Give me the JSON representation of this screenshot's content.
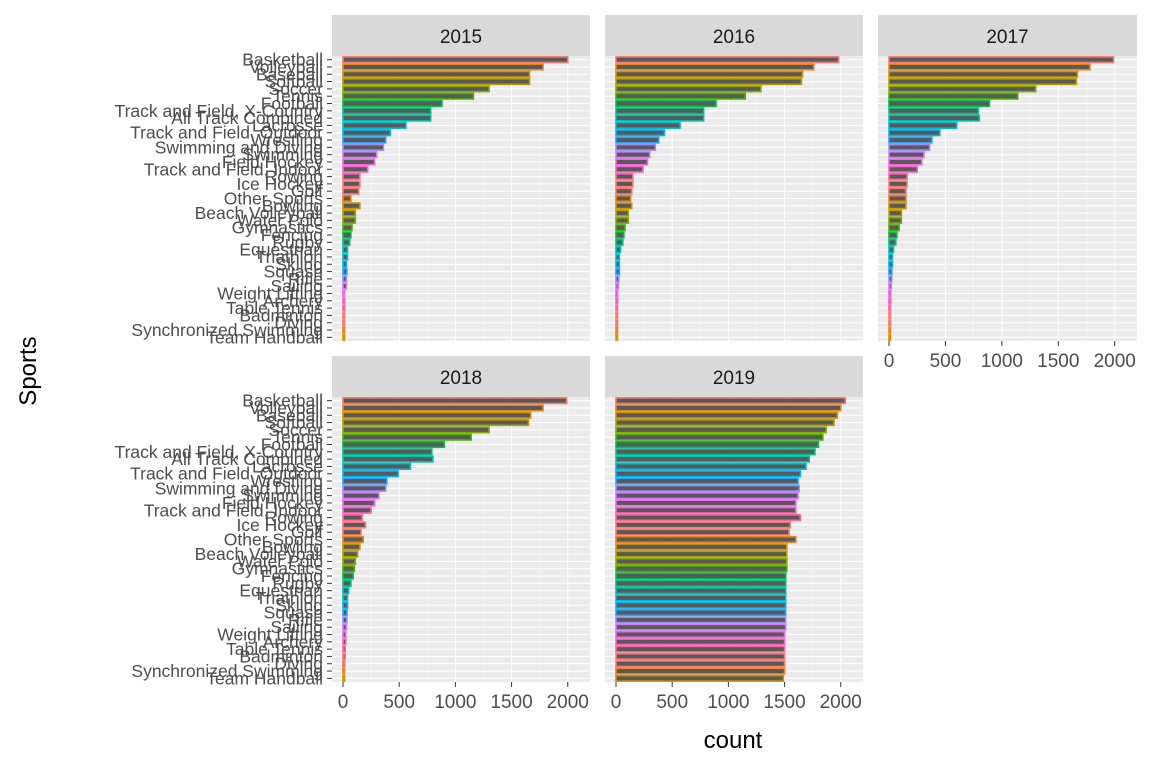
{
  "chart_data": {
    "type": "bar",
    "orientation": "horizontal",
    "facet_by": "year",
    "xlabel": "count",
    "ylabel": "Sports",
    "xlim": [
      0,
      2100
    ],
    "xticks": [
      0,
      500,
      1000,
      1500,
      2000
    ],
    "grid": true,
    "legend": "none",
    "categories": [
      "Basketball",
      "Volleyball",
      "Baseball",
      "Softball",
      "Soccer",
      "Tennis",
      "Football",
      "Track and Field, X-Country",
      "All Track Combined",
      "Lacrosse",
      "Track and Field, Outdoor",
      "Wrestling",
      "Swimming and Diving",
      "Swimming",
      "Field Hockey",
      "Track and Field, Indoor",
      "Rowing",
      "Ice Hockey",
      "Golf",
      "Other Sports",
      "Bowling",
      "Beach Volleyball",
      "Water Polo",
      "Gymnastics",
      "Fencing",
      "Rugby",
      "Equestrian",
      "Triathlon",
      "Skiing",
      "Squash",
      "Rifle",
      "Sailing",
      "Weight Lifting",
      "Archery",
      "Table Tennis",
      "Badminton",
      "Diving",
      "Synchronized Swimming",
      "Team Handball"
    ],
    "colors": [
      "#F8766D",
      "#E7851E",
      "#D09400",
      "#B2A100",
      "#89AC00",
      "#45B500",
      "#00BC51",
      "#00C087",
      "#00C0B2",
      "#00BCD6",
      "#00B3F2",
      "#29A3FF",
      "#9C8DFF",
      "#D277FF",
      "#F166E8",
      "#FF61C7",
      "#FF689E",
      "#FF7A72"
    ],
    "panels": [
      {
        "year": "2015",
        "values": [
          2000,
          1780,
          1660,
          1660,
          1300,
          1160,
          880,
          780,
          780,
          560,
          420,
          380,
          360,
          300,
          280,
          220,
          150,
          150,
          140,
          70,
          150,
          110,
          110,
          80,
          70,
          60,
          40,
          40,
          30,
          35,
          30,
          30,
          10,
          15,
          15,
          10,
          10,
          10,
          0
        ]
      },
      {
        "year": "2016",
        "values": [
          1980,
          1760,
          1660,
          1650,
          1290,
          1150,
          890,
          780,
          780,
          570,
          430,
          380,
          350,
          300,
          280,
          240,
          150,
          150,
          140,
          130,
          140,
          110,
          110,
          80,
          70,
          60,
          40,
          30,
          30,
          30,
          25,
          20,
          15,
          15,
          12,
          10,
          8,
          8,
          0
        ]
      },
      {
        "year": "2017",
        "values": [
          1990,
          1780,
          1670,
          1660,
          1300,
          1140,
          890,
          790,
          800,
          600,
          450,
          380,
          360,
          310,
          290,
          250,
          160,
          160,
          150,
          150,
          150,
          110,
          110,
          90,
          70,
          60,
          40,
          30,
          30,
          25,
          25,
          20,
          15,
          15,
          10,
          10,
          8,
          8,
          0
        ]
      },
      {
        "year": "2018",
        "values": [
          1990,
          1780,
          1670,
          1650,
          1300,
          1140,
          900,
          790,
          800,
          600,
          490,
          390,
          380,
          320,
          280,
          250,
          170,
          200,
          160,
          180,
          150,
          130,
          110,
          100,
          90,
          70,
          50,
          40,
          40,
          35,
          35,
          30,
          25,
          25,
          20,
          20,
          15,
          10,
          0
        ]
      },
      {
        "year": "2019",
        "values": [
          2040,
          2000,
          1970,
          1940,
          1870,
          1840,
          1800,
          1770,
          1720,
          1690,
          1640,
          1620,
          1630,
          1620,
          1600,
          1600,
          1640,
          1550,
          1540,
          1600,
          1520,
          1520,
          1520,
          1520,
          1510,
          1510,
          1510,
          1510,
          1510,
          1510,
          1510,
          1510,
          1500,
          1500,
          1500,
          1500,
          1500,
          1500,
          1490
        ]
      }
    ]
  }
}
